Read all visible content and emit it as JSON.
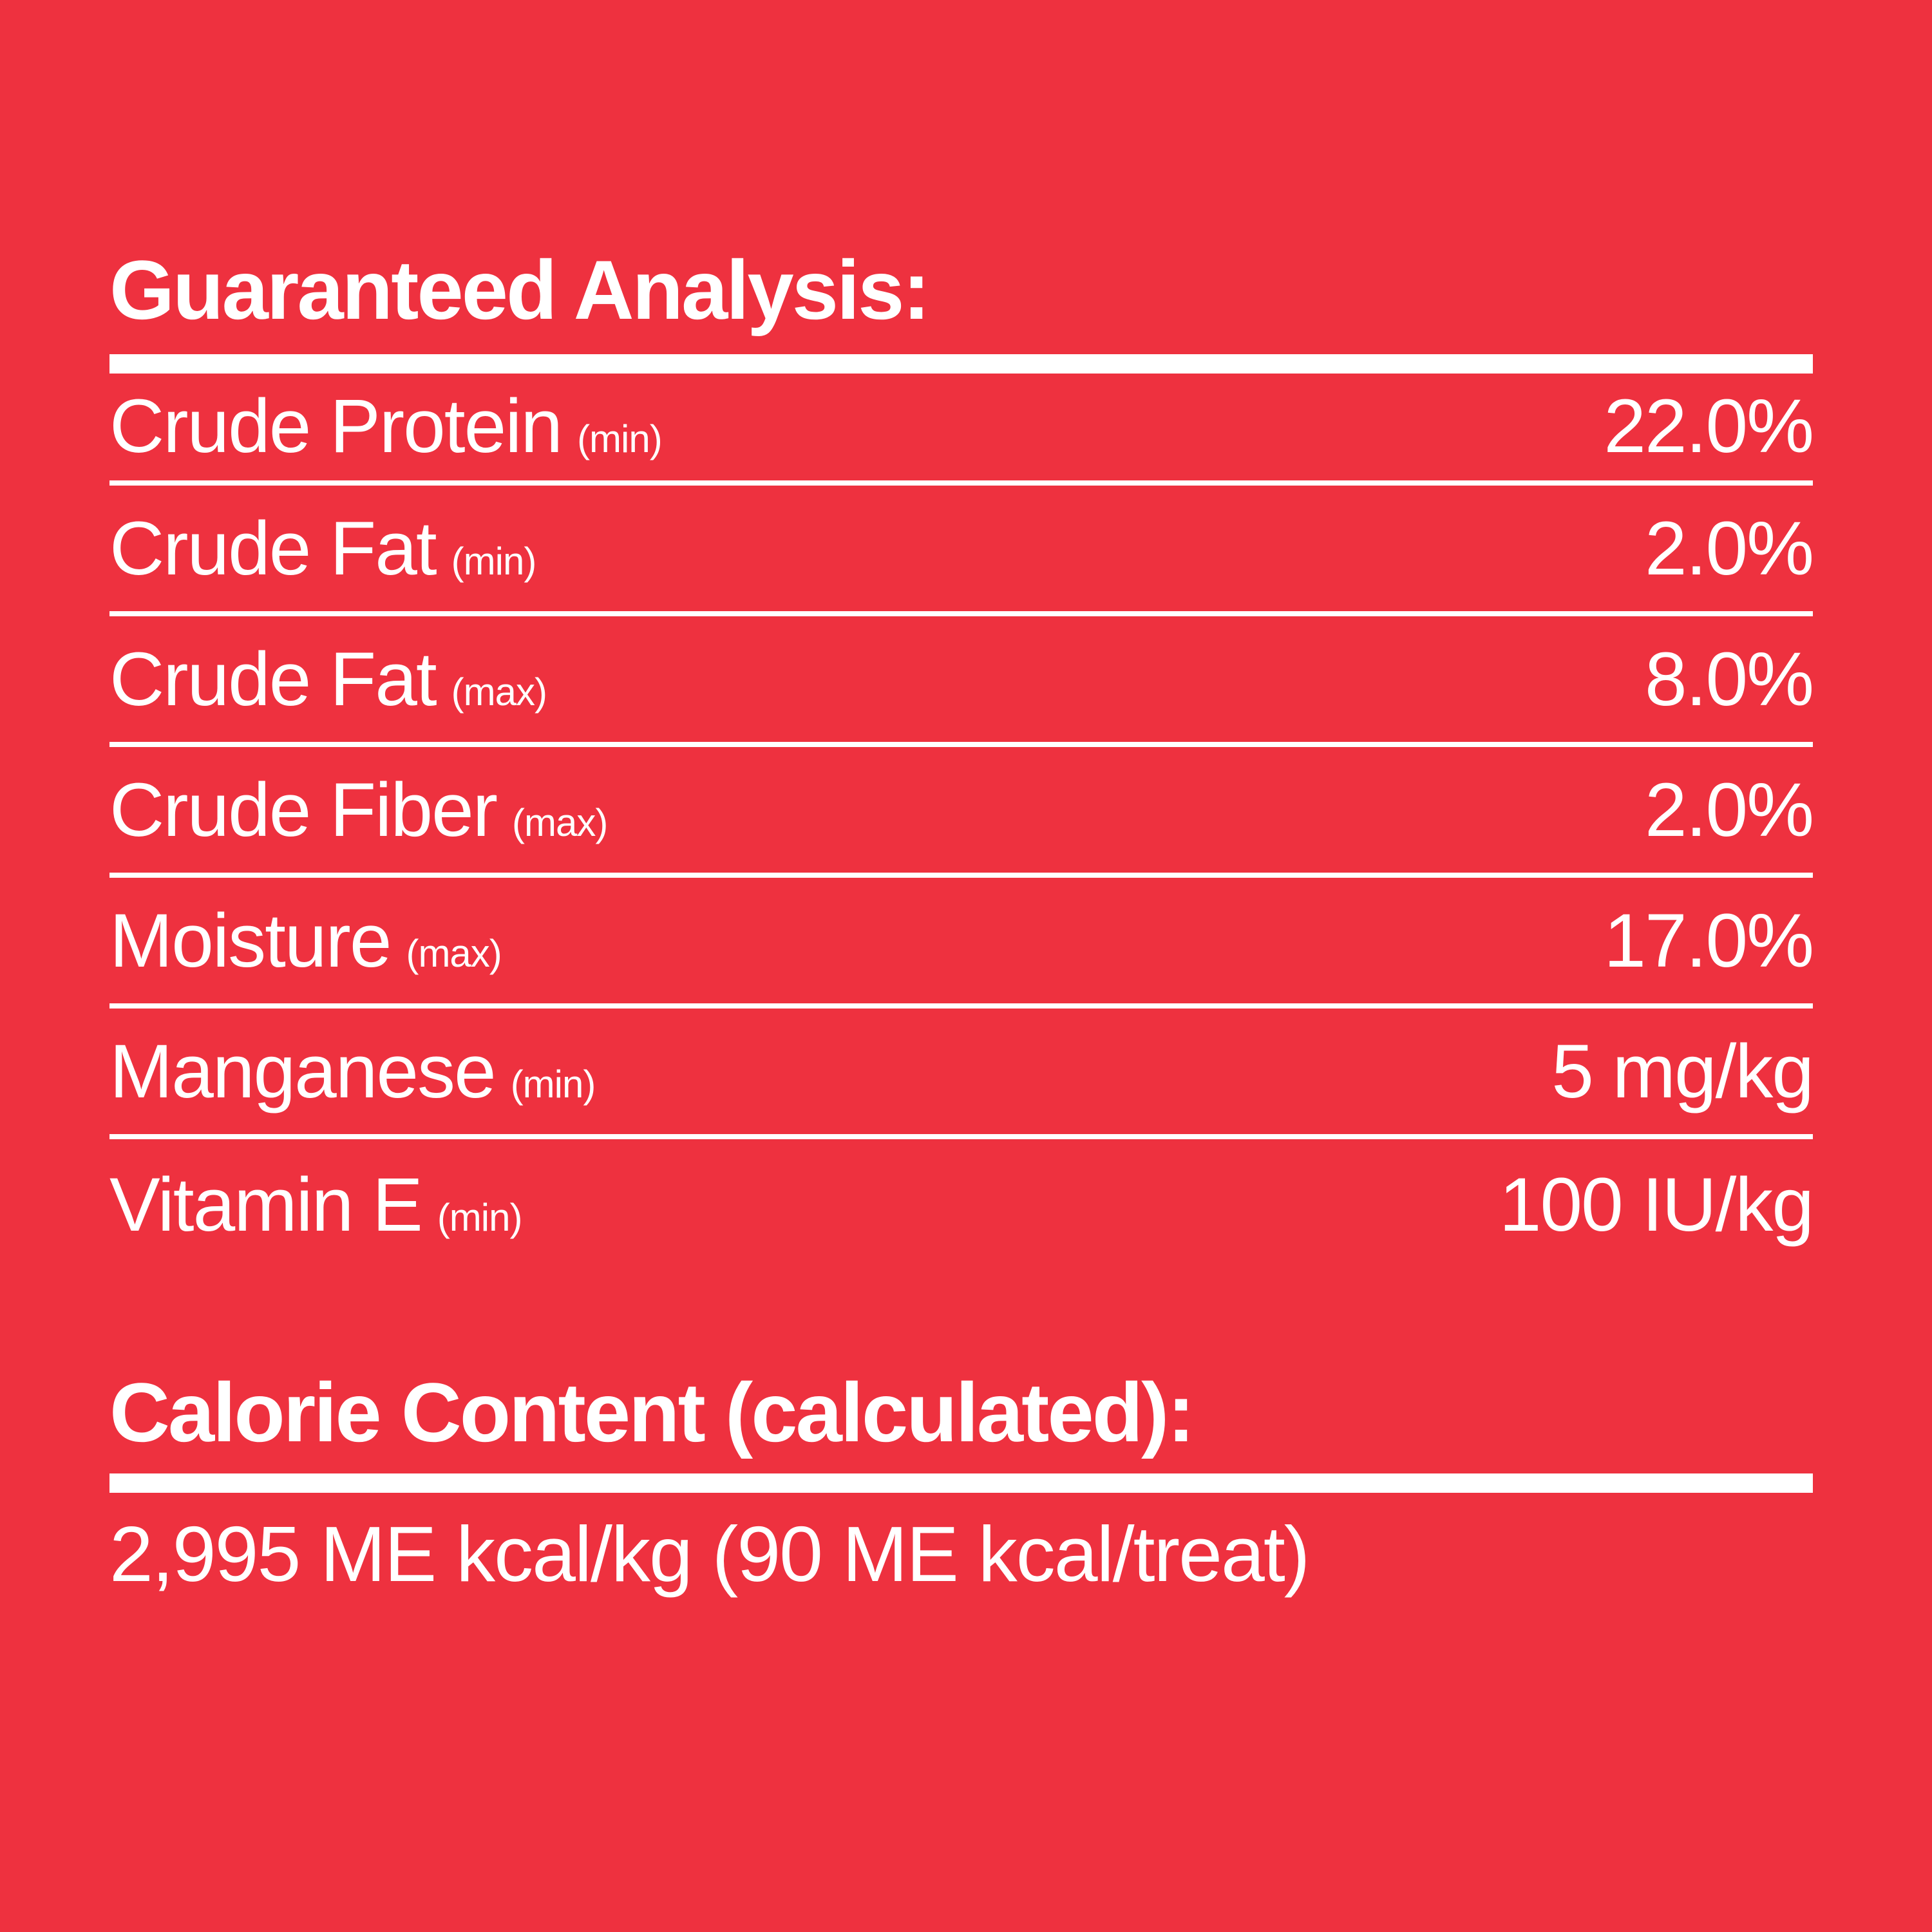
{
  "colors": {
    "background": "#ee313f",
    "foreground": "#ffffff"
  },
  "guaranteed_analysis": {
    "title": "Guaranteed Analysis:",
    "rows": [
      {
        "label": "Crude Protein",
        "qualifier": "(min)",
        "value": "22.0%"
      },
      {
        "label": "Crude Fat",
        "qualifier": "(min)",
        "value": "2.0%"
      },
      {
        "label": "Crude Fat",
        "qualifier": "(max)",
        "value": "8.0%"
      },
      {
        "label": "Crude Fiber",
        "qualifier": "(max)",
        "value": "2.0%"
      },
      {
        "label": "Moisture",
        "qualifier": "(max)",
        "value": "17.0%"
      },
      {
        "label": "Manganese",
        "qualifier": "(min)",
        "value": "5 mg/kg"
      },
      {
        "label": "Vitamin E",
        "qualifier": "(min)",
        "value": "100 IU/kg"
      }
    ]
  },
  "calorie_content": {
    "title": "Calorie Content (calculated):",
    "value": "2,995 ME kcal/kg (90 ME kcal/treat)"
  }
}
